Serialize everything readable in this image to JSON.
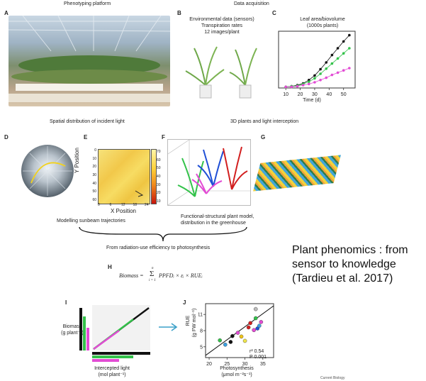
{
  "headers": {
    "phenotyping": "Phenotyping platform",
    "data_acquisition": "Data acquisition",
    "spatial": "Spatial distribution of incident light",
    "plants_light": "3D plants and light interception"
  },
  "panels": {
    "a": "A",
    "b": "B",
    "c": "C",
    "d": "D",
    "e": "E",
    "f": "F",
    "g": "G",
    "h": "H",
    "i": "I",
    "j": "J"
  },
  "panel_b": {
    "line1": "Environmental data (sensors)",
    "line2": "Transpiration rates",
    "line3": "12 images/plant"
  },
  "panel_c": {
    "title_line1": "Leaf area/biovolume",
    "title_line2": "(1000s plants)",
    "xlabel": "Time (d)",
    "ticks": [
      "10",
      "20",
      "30",
      "40",
      "50"
    ]
  },
  "panel_e": {
    "ylabel": "Y Position",
    "xlabel": "X Position",
    "xticks": [
      "0",
      "6",
      "12",
      "18",
      "24"
    ],
    "yticks": [
      "0",
      "10",
      "20",
      "30",
      "40",
      "50",
      "60"
    ],
    "cbar_ticks": [
      "70",
      "60",
      "50",
      "40",
      "30",
      "20",
      "10"
    ]
  },
  "captions": {
    "sunbeam": "Modelling sunbeam trajectories",
    "fsp_line1": "Functional-structural plant model,",
    "fsp_line2": "distribution in the greenhouse",
    "rue": "From radiation-use efficiency to photosynthesis"
  },
  "formula": {
    "lhs": "Biomass =",
    "sum_top": "n",
    "sum_bottom": "i = 1",
    "rhs": "PPFDᵢ × εᵢ × RUEᵢ"
  },
  "panel_i": {
    "ylabel_line1": "Biomass",
    "ylabel_line2": "(g plant⁻¹)",
    "xlabel_line1": "Intercepted light",
    "xlabel_line2": "(mol plant⁻¹)"
  },
  "panel_j": {
    "ylabel_line1": "RUE",
    "ylabel_line2": "(g FW mol⁻¹)",
    "xlabel_line1": "Photosynthesis",
    "xlabel_line2": "(μmol m⁻²s⁻¹)",
    "xticks": [
      "20",
      "25",
      "30",
      "35"
    ],
    "yticks": [
      "5",
      "8",
      "11"
    ],
    "r2": "r² 0.54",
    "p": "P 0.001"
  },
  "slide_text": {
    "line1": "Plant phenomics : from",
    "line2": "sensor to knowledge",
    "line3": "(Tardieu et al. 2017)"
  },
  "footer": "Current Biology",
  "colors": {
    "black": "#111111",
    "green": "#33c24a",
    "magenta": "#e24bd4",
    "blue": "#1f4fd6",
    "red": "#d21f1f",
    "arrow": "#3aa0c8"
  },
  "chart_data": [
    {
      "type": "scatter",
      "panel": "C",
      "title": "Leaf area/biovolume (1000s plants)",
      "xlabel": "Time (d)",
      "ylabel": "",
      "xlim": [
        5,
        58
      ],
      "ylim": [
        0,
        1
      ],
      "series": [
        {
          "color": "#111111",
          "x": [
            10,
            14,
            18,
            22,
            26,
            30,
            34,
            38,
            42,
            46,
            50,
            54
          ],
          "y": [
            0.02,
            0.03,
            0.05,
            0.08,
            0.14,
            0.22,
            0.33,
            0.45,
            0.58,
            0.7,
            0.82,
            0.93
          ]
        },
        {
          "color": "#33c24a",
          "x": [
            10,
            14,
            18,
            22,
            26,
            30,
            34,
            38,
            42,
            46,
            50,
            54
          ],
          "y": [
            0.02,
            0.03,
            0.04,
            0.07,
            0.11,
            0.17,
            0.25,
            0.34,
            0.43,
            0.52,
            0.61,
            0.7
          ]
        },
        {
          "color": "#e24bd4",
          "x": [
            10,
            14,
            18,
            22,
            26,
            30,
            34,
            38,
            42,
            46,
            50,
            54
          ],
          "y": [
            0.02,
            0.02,
            0.03,
            0.05,
            0.07,
            0.1,
            0.14,
            0.18,
            0.23,
            0.27,
            0.31,
            0.35
          ]
        }
      ]
    },
    {
      "type": "scatter",
      "panel": "J",
      "xlabel": "Photosynthesis",
      "ylabel": "RUE",
      "xlim": [
        19,
        38
      ],
      "ylim": [
        3,
        13
      ],
      "points": [
        {
          "x": 23,
          "y": 6.2,
          "color": "#33c24a"
        },
        {
          "x": 24.5,
          "y": 5.4,
          "color": "#3aa0e0"
        },
        {
          "x": 26,
          "y": 5.9,
          "color": "#111111"
        },
        {
          "x": 26.5,
          "y": 7.0,
          "color": "#111111"
        },
        {
          "x": 28,
          "y": 7.6,
          "color": "#e24bd4"
        },
        {
          "x": 29,
          "y": 6.9,
          "color": "#f0c419"
        },
        {
          "x": 30,
          "y": 6.1,
          "color": "#f0e64a"
        },
        {
          "x": 31,
          "y": 8.6,
          "color": "#d21f1f"
        },
        {
          "x": 31.5,
          "y": 9.4,
          "color": "#d21f1f"
        },
        {
          "x": 32.5,
          "y": 8.1,
          "color": "#e24bd4"
        },
        {
          "x": 33.5,
          "y": 8.4,
          "color": "#1f4fd6"
        },
        {
          "x": 33,
          "y": 10.3,
          "color": "#33c24a"
        },
        {
          "x": 34.5,
          "y": 9.6,
          "color": "#e24bd4"
        },
        {
          "x": 33,
          "y": 12.0,
          "color": "#bbbbbb"
        },
        {
          "x": 34.0,
          "y": 8.9,
          "color": "#3aa0e0"
        }
      ],
      "fit_line": {
        "x": [
          19,
          38
        ],
        "y": [
          3.4,
          12.6
        ]
      }
    }
  ]
}
